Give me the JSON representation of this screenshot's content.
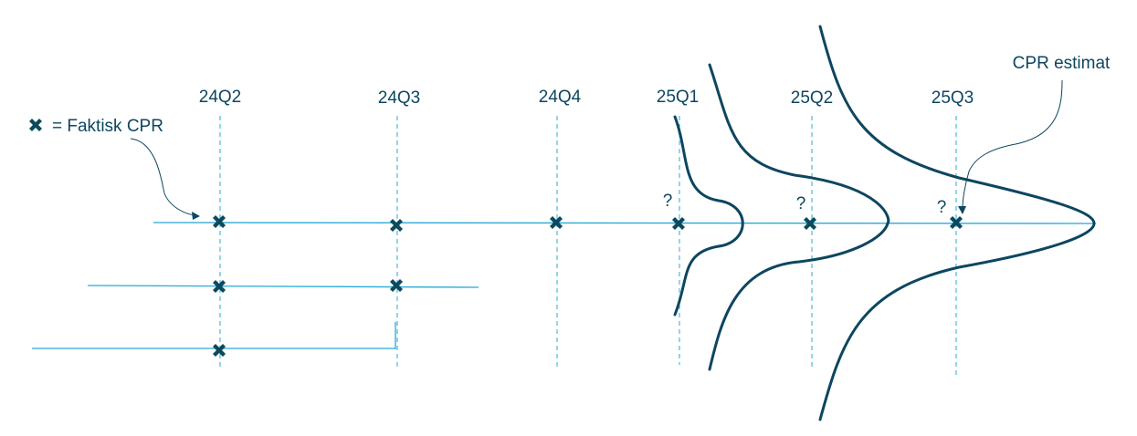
{
  "quarters": [
    "24Q2",
    "24Q3",
    "24Q4",
    "25Q1",
    "25Q2",
    "25Q3"
  ],
  "legend": {
    "text": "= Faktisk CPR",
    "marker_icon": "cross-marker-icon"
  },
  "annotation": {
    "text": "CPR estimat"
  },
  "unknown_marker": "?",
  "colors": {
    "line": "#29a9d6",
    "marker": "#0b4a5e",
    "curve": "#0d4660",
    "text": "#0d4660"
  }
}
